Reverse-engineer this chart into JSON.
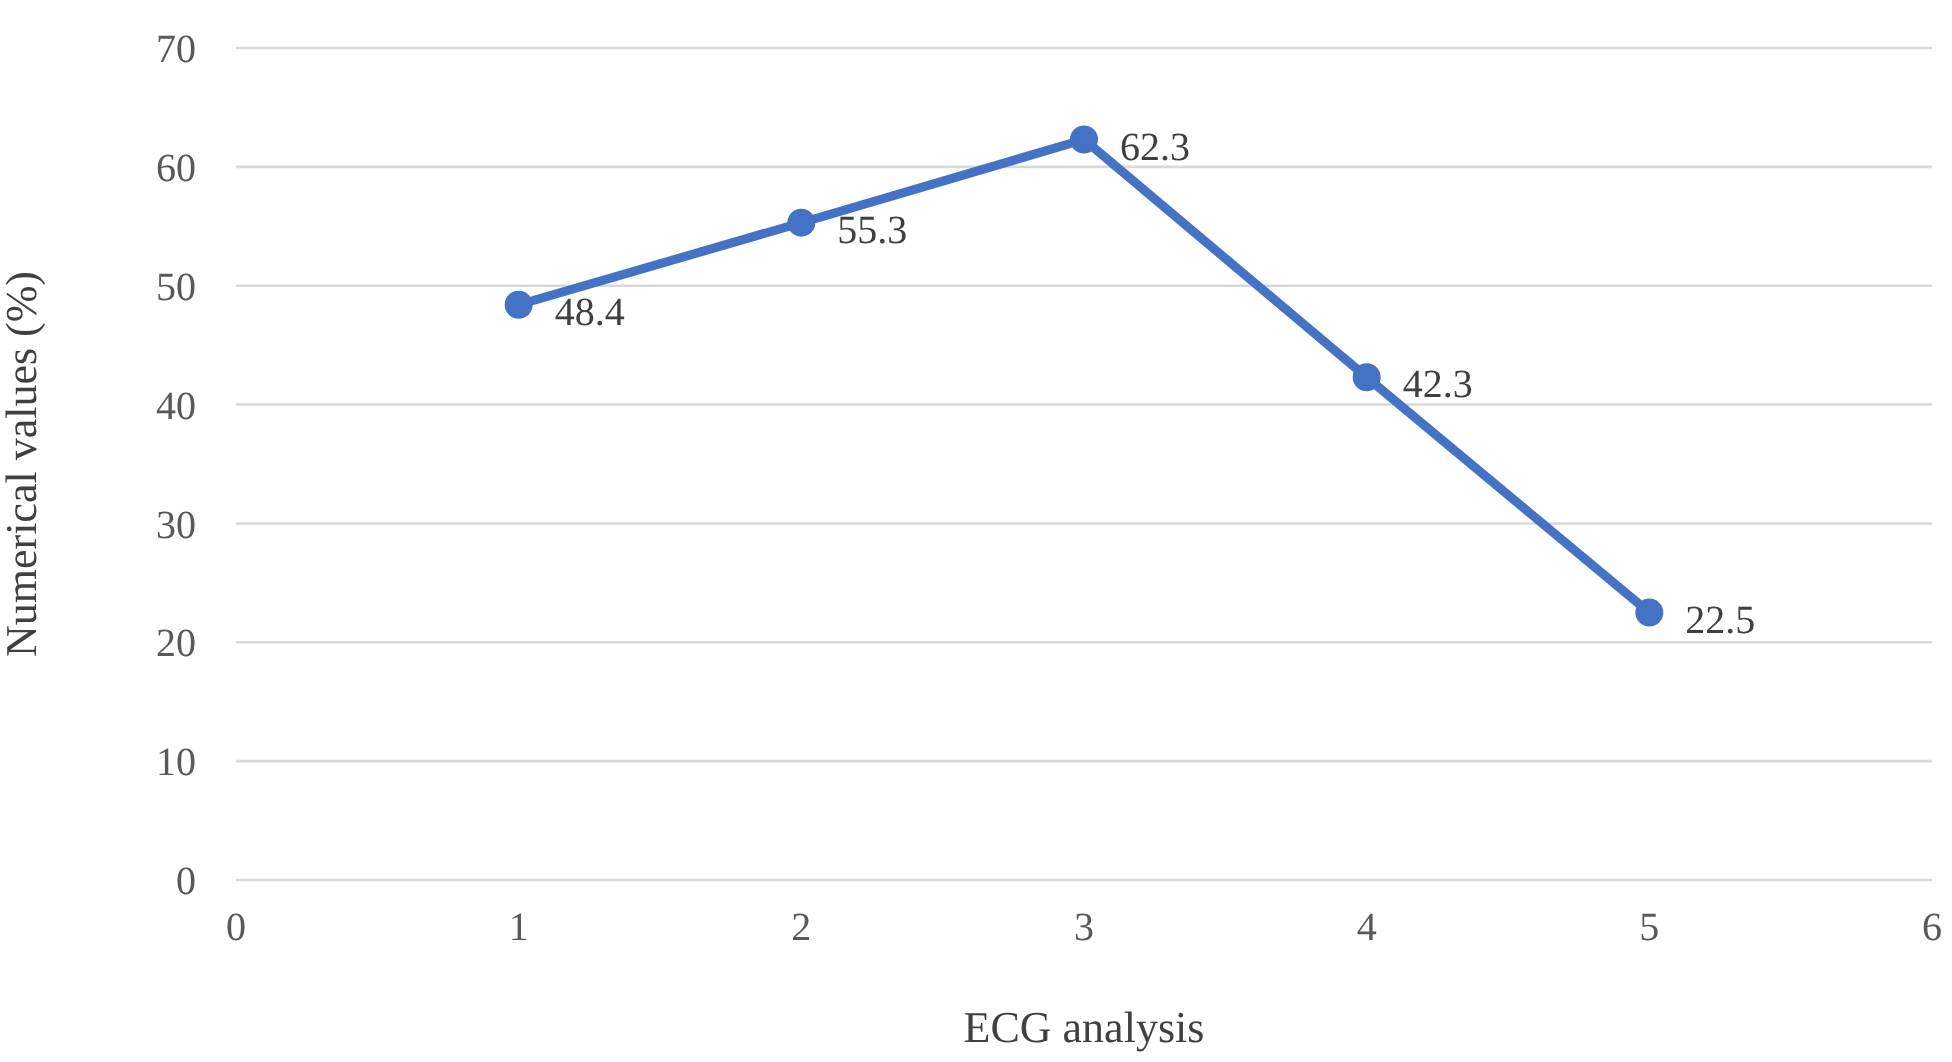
{
  "chart_data": {
    "type": "line",
    "xlabel": "ECG analysis",
    "ylabel": "Numerical values (%)",
    "x": [
      1,
      2,
      3,
      4,
      5
    ],
    "values": [
      48.4,
      55.3,
      62.3,
      42.3,
      22.5
    ],
    "color": "#4472c4",
    "xlim": [
      0,
      6
    ],
    "xticks": [
      0,
      1,
      2,
      3,
      4,
      5,
      6
    ],
    "ylim": [
      0,
      70
    ],
    "yticks": [
      0,
      10,
      20,
      30,
      40,
      50,
      60,
      70
    ],
    "grid": "y",
    "marker": "circle",
    "data_labels": true
  }
}
